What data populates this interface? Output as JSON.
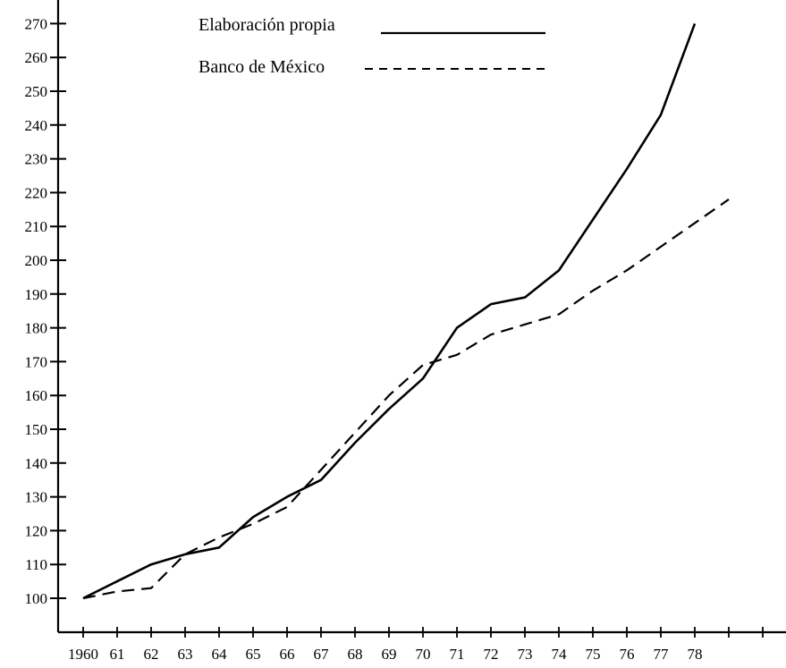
{
  "chart_data": {
    "type": "line",
    "title": "",
    "xlabel": "",
    "ylabel": "",
    "x_tick_labels": [
      "1960",
      "61",
      "62",
      "63",
      "64",
      "65",
      "66",
      "67",
      "68",
      "69",
      "70",
      "71",
      "72",
      "73",
      "74",
      "75",
      "76",
      "77",
      "78"
    ],
    "y_tick_labels": [
      "100",
      "110",
      "120",
      "130",
      "140",
      "150",
      "160",
      "170",
      "180",
      "190",
      "200",
      "210",
      "220",
      "230",
      "240",
      "250",
      "260",
      "270"
    ],
    "ylim": [
      95,
      276
    ],
    "legend_position": "top-center",
    "grid": false,
    "series": [
      {
        "name": "Elaboración propia",
        "style": "solid",
        "color": "#000000",
        "x": [
          1960,
          1961,
          1962,
          1963,
          1964,
          1965,
          1966,
          1967,
          1968,
          1969,
          1970,
          1971,
          1972,
          1973,
          1974,
          1975,
          1976,
          1977,
          1978
        ],
        "values": [
          100,
          105,
          110,
          113,
          115,
          124,
          130,
          135,
          146,
          156,
          165,
          180,
          187,
          189,
          197,
          212,
          227,
          243,
          270
        ]
      },
      {
        "name": "Banco de México",
        "style": "dashed",
        "color": "#000000",
        "x": [
          1960,
          1961,
          1962,
          1963,
          1964,
          1965,
          1966,
          1967,
          1968,
          1969,
          1970,
          1971,
          1972,
          1973,
          1974,
          1975,
          1976,
          1977,
          1978,
          1979
        ],
        "values": [
          100,
          102,
          103,
          113,
          118,
          122,
          127,
          138,
          149,
          160,
          169,
          172,
          178,
          181,
          184,
          191,
          197,
          204,
          211,
          218
        ]
      }
    ]
  }
}
